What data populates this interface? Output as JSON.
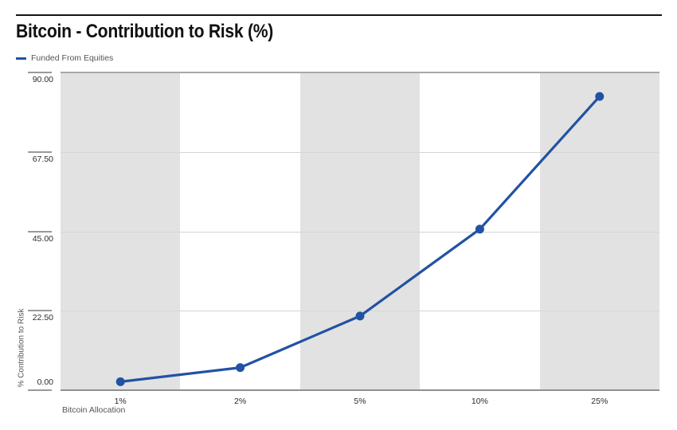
{
  "header": {
    "title": "Bitcoin - Contribution to Risk (%)"
  },
  "legend": {
    "label": "Funded From Equities"
  },
  "chart_data": {
    "type": "line",
    "title": "Bitcoin - Contribution to Risk (%)",
    "xlabel": "Bitcoin Allocation",
    "ylabel": "% Contribution to Risk",
    "categories": [
      "1%",
      "2%",
      "5%",
      "10%",
      "25%"
    ],
    "series": [
      {
        "name": "Funded From Equities",
        "color": "#2152a3",
        "values": [
          2.4,
          6.4,
          21.0,
          45.6,
          83.2
        ]
      }
    ],
    "ylim": [
      0,
      90
    ],
    "yticks": [
      {
        "value": 0,
        "label": "0.00"
      },
      {
        "value": 22.5,
        "label": "22.50"
      },
      {
        "value": 45,
        "label": "45.00"
      },
      {
        "value": 67.5,
        "label": "67.50"
      },
      {
        "value": 90,
        "label": "90.00"
      }
    ],
    "grid": "horizontal",
    "plot_band_colors": [
      "#e2e2e2",
      "#ffffff"
    ],
    "legend_position": "top-left",
    "marker": "circle",
    "marker_radius": 5.5,
    "line_width": 3.2
  },
  "colors": {
    "accent_blue": "#2152a3",
    "band_gray": "#e2e2e2",
    "gridline": "#d5d5d5",
    "axis_line": "#8f8f8f",
    "tick_text": "#2b2b2b",
    "label_text": "#555555",
    "title_rule": "#141414"
  }
}
